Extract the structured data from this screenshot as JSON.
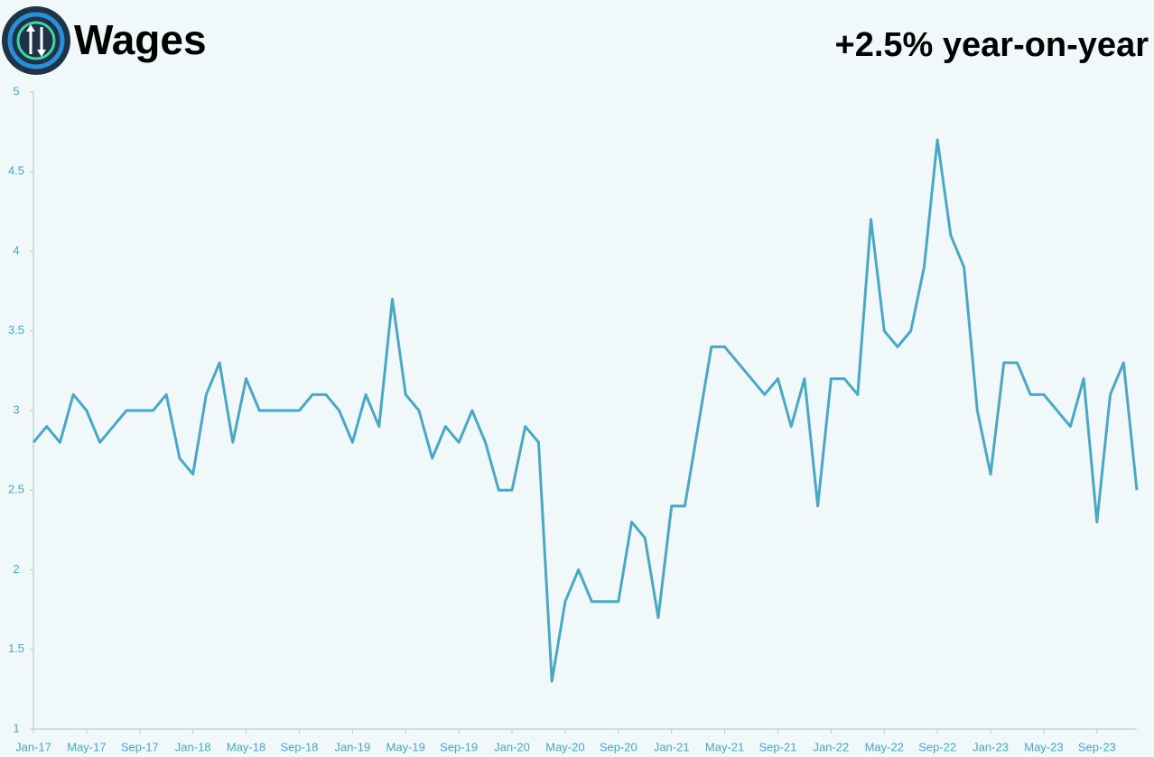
{
  "chart_data": {
    "type": "line",
    "title": "Wages",
    "subtitle": "+2.5% year-on-year",
    "categories": [
      "Jan-17",
      null,
      null,
      null,
      "May-17",
      null,
      null,
      null,
      "Sep-17",
      null,
      null,
      null,
      "Jan-18",
      null,
      null,
      null,
      "May-18",
      null,
      null,
      null,
      "Sep-18",
      null,
      null,
      null,
      "Jan-19",
      null,
      null,
      null,
      "May-19",
      null,
      null,
      null,
      "Sep-19",
      null,
      null,
      null,
      "Jan-20",
      null,
      null,
      null,
      "May-20",
      null,
      null,
      null,
      "Sep-20",
      null,
      null,
      null,
      "Jan-21",
      null,
      null,
      null,
      "May-21",
      null,
      null,
      null,
      "Sep-21",
      null,
      null,
      null,
      "Jan-22",
      null,
      null,
      null,
      "May-22",
      null,
      null,
      null,
      "Sep-22",
      null,
      null,
      null,
      "Jan-23",
      null,
      null,
      null,
      "May-23",
      null,
      null,
      null,
      "Sep-23",
      null,
      null,
      null
    ],
    "values": [
      2.8,
      2.9,
      2.8,
      3.1,
      3.0,
      2.8,
      2.9,
      3.0,
      3.0,
      3.0,
      3.1,
      2.7,
      2.6,
      3.1,
      3.3,
      2.8,
      3.2,
      3.0,
      3.0,
      3.0,
      3.0,
      3.1,
      3.1,
      3.0,
      2.8,
      3.1,
      2.9,
      3.7,
      3.1,
      3.0,
      2.7,
      2.9,
      2.8,
      3.0,
      2.8,
      2.5,
      2.5,
      2.9,
      2.8,
      1.3,
      1.8,
      2.0,
      1.8,
      1.8,
      1.8,
      2.3,
      2.2,
      1.7,
      2.4,
      2.4,
      2.9,
      3.4,
      3.4,
      3.3,
      3.2,
      3.1,
      3.2,
      2.9,
      3.2,
      2.4,
      3.2,
      3.2,
      3.1,
      4.2,
      3.5,
      3.4,
      3.5,
      3.9,
      4.7,
      4.1,
      3.9,
      3.0,
      2.6,
      3.3,
      3.3,
      3.1,
      3.1,
      3.0,
      2.9,
      3.2,
      2.3,
      3.1,
      3.3,
      2.5
    ],
    "color": "#4aa8c4",
    "ylim": [
      1,
      5
    ],
    "yticks": [
      1,
      1.5,
      2,
      2.5,
      3,
      3.5,
      4,
      4.5,
      5
    ],
    "grid": false
  }
}
